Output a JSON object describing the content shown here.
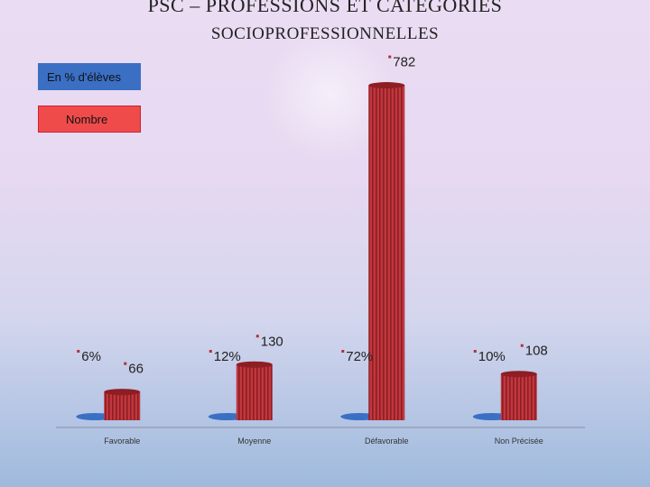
{
  "title": {
    "line1": "PSC – PROFESSIONS ET CATÉGORIES",
    "line2": "SOCIOPROFESSIONNELLES"
  },
  "legend": {
    "percent_label": "En % d'élèves",
    "count_label": "Nombre"
  },
  "colors": {
    "percent_series": "#3a6fc4",
    "count_series": "#c0383e",
    "count_stripe": "#8e1d24",
    "bullet": "#b03038"
  },
  "chart_data": {
    "type": "bar",
    "categories": [
      "Favorable",
      "Moyenne",
      "Défavorable",
      "Non Précisée"
    ],
    "series": [
      {
        "name": "En % d'élèves",
        "values": [
          6,
          12,
          72,
          10
        ],
        "labels": [
          "6%",
          "12%",
          "72%",
          "10%"
        ]
      },
      {
        "name": "Nombre",
        "values": [
          66,
          130,
          782,
          108
        ],
        "labels": [
          "66",
          "130",
          "782",
          "108"
        ]
      }
    ],
    "ylim": [
      0,
      800
    ],
    "legend_position": "top-left",
    "grid": false
  }
}
